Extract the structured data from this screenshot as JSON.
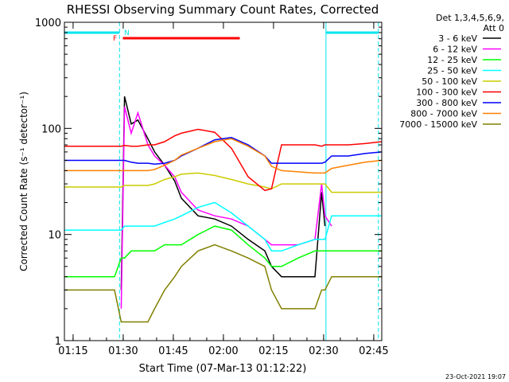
{
  "chart_data": {
    "type": "line",
    "title": "RHESSI Observing Summary Count Rates, Corrected",
    "xlabel": "Start Time (07-Mar-13 01:12:22)",
    "ylabel": "Corrected Count Rate (s⁻¹ detector⁻¹)",
    "y_scale": "log",
    "ylim": [
      1,
      1000
    ],
    "xlim_minutes": [
      0,
      95
    ],
    "x_ticks": [
      "01:15",
      "01:30",
      "01:45",
      "02:00",
      "02:15",
      "02:30",
      "02:45"
    ],
    "x_tick_minutes": [
      2.6,
      17.6,
      32.6,
      47.6,
      62.6,
      77.6,
      92.6
    ],
    "y_ticks": [
      {
        "label": "1",
        "value": 1
      },
      {
        "label": "10",
        "value": 10
      },
      {
        "label": "100",
        "value": 100
      },
      {
        "label": "1000",
        "value": 1000
      }
    ],
    "legend_header": [
      "Det 1,3,4,5,6,9,",
      "Att 0"
    ],
    "legend_position": "right",
    "flags": [
      {
        "label": "F",
        "color": "#ff0000"
      },
      {
        "label": "N",
        "color": "#00e0e0"
      }
    ],
    "flag_segments": [
      {
        "name": "night",
        "color": "#00e5ee",
        "x_start": 0,
        "x_end": 16.5
      },
      {
        "name": "flare",
        "color": "#ff0000",
        "x_start": 17.5,
        "x_end": 52.5
      },
      {
        "name": "night",
        "color": "#00e5ee",
        "x_start": 78.3,
        "x_end": 94
      }
    ],
    "vlines": [
      {
        "x": 0,
        "color": "#00e5ee",
        "style": "solid"
      },
      {
        "x": 16.5,
        "color": "#00e5ee",
        "style": "dashed"
      },
      {
        "x": 78.3,
        "color": "#00e5ee",
        "style": "solid"
      },
      {
        "x": 94,
        "color": "#00e5ee",
        "style": "dashed"
      }
    ],
    "x": [
      0,
      5,
      10,
      15,
      17,
      18,
      20,
      22,
      25,
      27,
      30,
      33,
      35,
      40,
      45,
      50,
      55,
      60,
      62,
      65,
      70,
      75,
      77,
      78,
      80,
      85,
      90,
      95
    ],
    "series": [
      {
        "name": "3 - 6 keV",
        "color": "#000000",
        "values": [
          null,
          null,
          null,
          null,
          3,
          200,
          110,
          120,
          80,
          60,
          45,
          32,
          22,
          15,
          14,
          12,
          9,
          7,
          5,
          4,
          4,
          4,
          25,
          12,
          null,
          null,
          null,
          null
        ]
      },
      {
        "name": "6 - 12 keV",
        "color": "#ff00ff",
        "values": [
          null,
          null,
          null,
          null,
          2,
          160,
          90,
          140,
          70,
          55,
          45,
          35,
          25,
          17,
          15,
          14,
          12,
          9,
          8,
          8,
          8,
          9,
          30,
          15,
          12,
          null,
          null,
          null
        ]
      },
      {
        "name": "12 - 25 keV",
        "color": "#00ff00",
        "values": [
          4,
          4,
          4,
          4,
          6,
          6,
          7,
          7,
          7,
          7,
          8,
          8,
          8,
          10,
          12,
          11,
          8,
          6,
          5,
          5,
          6,
          7,
          7,
          7,
          7,
          7,
          7,
          7
        ]
      },
      {
        "name": "25 - 50 keV",
        "color": "#00ffff",
        "values": [
          11,
          11,
          11,
          11,
          11,
          12,
          12,
          12,
          12,
          12,
          13,
          14,
          15,
          18,
          20,
          16,
          12,
          9,
          7,
          7,
          8,
          9,
          9,
          9,
          15,
          15,
          15,
          15
        ]
      },
      {
        "name": "50 - 100 keV",
        "color": "#cccc00",
        "values": [
          28,
          28,
          28,
          28,
          28,
          29,
          29,
          29,
          29,
          30,
          33,
          35,
          37,
          38,
          36,
          33,
          30,
          28,
          27,
          30,
          30,
          30,
          30,
          30,
          25,
          25,
          25,
          25
        ]
      },
      {
        "name": "100 - 300 keV",
        "color": "#ff0000",
        "values": [
          68,
          68,
          68,
          68,
          68,
          69,
          68,
          68,
          70,
          70,
          75,
          85,
          90,
          98,
          92,
          65,
          35,
          26,
          27,
          70,
          70,
          70,
          68,
          70,
          70,
          70,
          72,
          75
        ]
      },
      {
        "name": "300 - 800 keV",
        "color": "#0000ff",
        "values": [
          50,
          50,
          50,
          50,
          50,
          50,
          48,
          47,
          47,
          46,
          47,
          50,
          55,
          65,
          78,
          82,
          70,
          55,
          47,
          47,
          47,
          47,
          47,
          48,
          55,
          55,
          58,
          60
        ]
      },
      {
        "name": "800 - 7000 keV",
        "color": "#ff8000",
        "values": [
          40,
          40,
          40,
          40,
          40,
          40,
          40,
          40,
          40,
          41,
          45,
          50,
          56,
          65,
          75,
          80,
          68,
          55,
          44,
          40,
          39,
          38,
          38,
          38,
          42,
          45,
          48,
          50
        ]
      },
      {
        "name": "7000 - 15000 keV",
        "color": "#808000",
        "values": [
          3,
          3,
          3,
          3,
          1.5,
          1.5,
          1.5,
          1.5,
          1.5,
          2,
          3,
          4,
          5,
          7,
          8,
          7,
          6,
          5,
          3,
          2,
          2,
          2,
          3,
          3,
          4,
          4,
          4,
          4
        ]
      }
    ]
  },
  "footer": {
    "date_stamp": "23-Oct-2021 19:07"
  }
}
